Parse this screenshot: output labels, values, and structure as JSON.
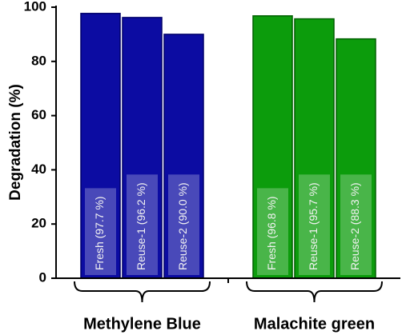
{
  "chart_data": {
    "type": "bar",
    "ylabel": "Degradation (%)",
    "ylim": [
      0,
      100
    ],
    "yticks": [
      0,
      20,
      40,
      60,
      80,
      100
    ],
    "series": [
      {
        "name": "Methylene Blue",
        "color": "#0c0ca2",
        "values": [
          97.7,
          96.2,
          90.0
        ],
        "value_labels": [
          "Fresh (97.7 %)",
          "Reuse-1 (96.2 %)",
          "Reuse-2 (90.0 %)"
        ]
      },
      {
        "name": "Malachite green",
        "color": "#0c9c0c",
        "values": [
          96.8,
          95.7,
          88.3
        ],
        "value_labels": [
          "Fresh (96.8 %)",
          "Reuse-1 (95.7 %)",
          "Reuse-2 (88.3 %)"
        ]
      }
    ]
  }
}
